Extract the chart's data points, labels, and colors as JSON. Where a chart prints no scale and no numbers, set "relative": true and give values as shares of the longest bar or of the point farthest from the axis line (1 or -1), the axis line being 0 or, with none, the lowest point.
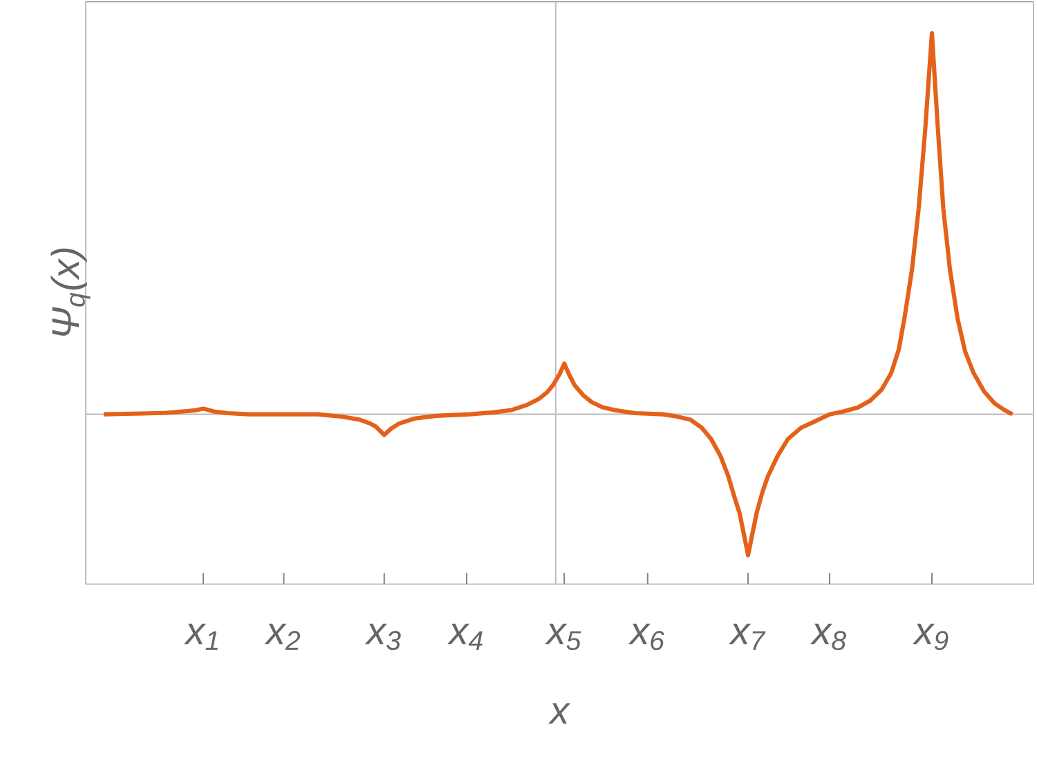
{
  "chart_data": {
    "type": "line",
    "relative": true,
    "xlabel": "x",
    "ylabel": "Ψ$_{q}$(x)",
    "xlim": [
      0,
      10
    ],
    "xticks": [
      {
        "value": 1.24,
        "label": "x$_{1}$"
      },
      {
        "value": 2.09,
        "label": "x$_{2}$"
      },
      {
        "value": 3.15,
        "label": "x$_{3}$"
      },
      {
        "value": 4.02,
        "label": "x$_{4}$"
      },
      {
        "value": 5.05,
        "label": "x$_{5}$"
      },
      {
        "value": 5.93,
        "label": "x$_{6}$"
      },
      {
        "value": 6.99,
        "label": "x$_{7}$"
      },
      {
        "value": 7.85,
        "label": "x$_{8}$"
      },
      {
        "value": 8.93,
        "label": "x$_{9}$"
      }
    ],
    "ref_lines": [
      {
        "axis": "x",
        "value": 4.96,
        "color": "#c0c0c0"
      },
      {
        "axis": "y",
        "value": 0,
        "color": "#c0c0c0"
      }
    ],
    "grid": false,
    "marker": "none",
    "line_style": "solid",
    "series": [
      {
        "color": "#e4611a",
        "x": [
          0.19,
          0.6,
          0.85,
          1.05,
          1.14,
          1.24,
          1.36,
          1.5,
          1.72,
          2.45,
          2.7,
          2.89,
          3.0,
          3.06,
          3.15,
          3.22,
          3.3,
          3.47,
          3.7,
          4.05,
          4.3,
          4.49,
          4.65,
          4.78,
          4.87,
          4.93,
          5.0,
          5.05,
          5.1,
          5.16,
          5.25,
          5.34,
          5.45,
          5.58,
          5.8,
          6.09,
          6.2,
          6.38,
          6.5,
          6.6,
          6.7,
          6.78,
          6.85,
          6.9,
          6.95,
          6.99,
          7.03,
          7.08,
          7.14,
          7.2,
          7.3,
          7.41,
          7.55,
          7.7,
          7.85,
          7.99,
          8.15,
          8.28,
          8.4,
          8.5,
          8.58,
          8.64,
          8.72,
          8.79,
          8.86,
          8.93,
          8.99,
          9.05,
          9.12,
          9.2,
          9.28,
          9.37,
          9.48,
          9.59,
          9.69,
          9.78
        ],
        "values": [
          0,
          0.002,
          0.004,
          0.008,
          0.01,
          0.015,
          0.007,
          0.003,
          0,
          0,
          -0.006,
          -0.014,
          -0.024,
          -0.032,
          -0.054,
          -0.038,
          -0.025,
          -0.011,
          -0.004,
          0,
          0.005,
          0.011,
          0.024,
          0.04,
          0.058,
          0.076,
          0.105,
          0.133,
          0.105,
          0.076,
          0.05,
          0.032,
          0.019,
          0.011,
          0.003,
          0,
          -0.004,
          -0.014,
          -0.035,
          -0.065,
          -0.11,
          -0.162,
          -0.22,
          -0.259,
          -0.32,
          -0.37,
          -0.32,
          -0.259,
          -0.205,
          -0.162,
          -0.11,
          -0.065,
          -0.035,
          -0.018,
          0,
          0.007,
          0.018,
          0.036,
          0.065,
          0.108,
          0.17,
          0.252,
          0.38,
          0.54,
          0.75,
          1.0,
          0.76,
          0.54,
          0.38,
          0.252,
          0.165,
          0.108,
          0.06,
          0.029,
          0.012,
          0
        ]
      }
    ]
  }
}
